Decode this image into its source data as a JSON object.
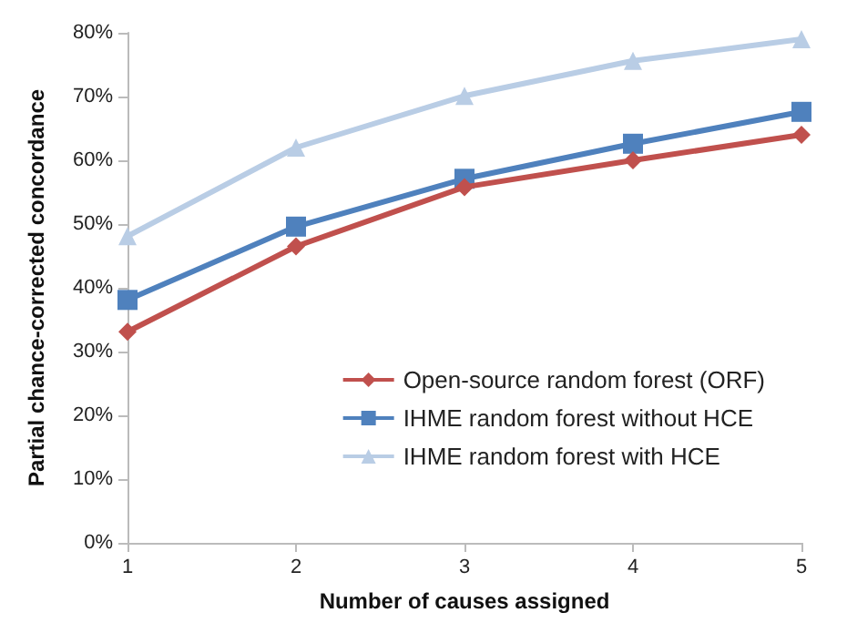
{
  "chart_data": {
    "type": "line",
    "xlabel": "Number of causes assigned",
    "ylabel": "Partial chance-corrected concordance",
    "categories": [
      "1",
      "2",
      "3",
      "4",
      "5"
    ],
    "series": [
      {
        "name": "Open-source random forest (ORF)",
        "color": "#c0504d",
        "marker": "diamond",
        "values": [
          33.1,
          46.5,
          55.8,
          60.0,
          64.0
        ]
      },
      {
        "name": "IHME random forest without HCE",
        "color": "#4f81bd",
        "marker": "square",
        "values": [
          38.1,
          49.6,
          57.1,
          62.6,
          67.6
        ]
      },
      {
        "name": "IHME random forest with HCE",
        "color": "#b9cde5",
        "marker": "triangle",
        "values": [
          48.1,
          62.0,
          70.1,
          75.6,
          79.0
        ]
      }
    ],
    "ylim": [
      0,
      80
    ],
    "yticks": [
      {
        "value": 0,
        "label": "0%"
      },
      {
        "value": 10,
        "label": "10%"
      },
      {
        "value": 20,
        "label": "20%"
      },
      {
        "value": 30,
        "label": "30%"
      },
      {
        "value": 40,
        "label": "40%"
      },
      {
        "value": 50,
        "label": "50%"
      },
      {
        "value": 60,
        "label": "60%"
      },
      {
        "value": 70,
        "label": "70%"
      },
      {
        "value": 80,
        "label": "80%"
      }
    ],
    "grid": false,
    "legend": "bottom right"
  }
}
